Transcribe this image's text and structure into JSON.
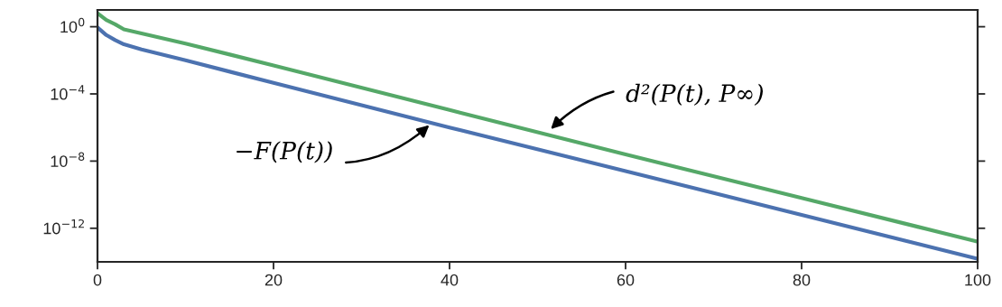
{
  "chart_data": {
    "type": "line",
    "log": "y",
    "grid": false,
    "legend": false,
    "line_style": "solid",
    "marker": "none",
    "xlim": [
      0,
      100
    ],
    "xticks": [
      0,
      20,
      40,
      60,
      80,
      100
    ],
    "ylim": [
      1e-14,
      10
    ],
    "yticks": [
      {
        "value": 1,
        "label": "10$^{0}$"
      },
      {
        "value": 0.0001,
        "label": "10$^{−4}$"
      },
      {
        "value": 1e-08,
        "label": "10$^{−8}$"
      },
      {
        "value": 1e-12,
        "label": "10$^{−12}$"
      }
    ],
    "x": [
      0,
      1,
      2,
      3,
      5,
      10,
      20,
      40,
      60,
      80,
      100
    ],
    "series": [
      {
        "color": "#55a868",
        "values": [
          6.3,
          2.5,
          1.4,
          0.7,
          0.4,
          0.1,
          0.005,
          1.1e-05,
          2.5e-08,
          6.3e-11,
          1.6e-13
        ]
      },
      {
        "color": "#4c72b0",
        "values": [
          0.9,
          0.32,
          0.16,
          0.09,
          0.045,
          0.01,
          0.00045,
          1e-06,
          2.5e-09,
          6.3e-12,
          1.5e-14
        ]
      }
    ],
    "annotations": [
      {
        "text": "d²(P(t), P∞)",
        "x": 51.5,
        "y": 8e-07
      },
      {
        "text": "−F(P(t))",
        "x": 37.7,
        "y": 1.4e-06
      }
    ]
  }
}
